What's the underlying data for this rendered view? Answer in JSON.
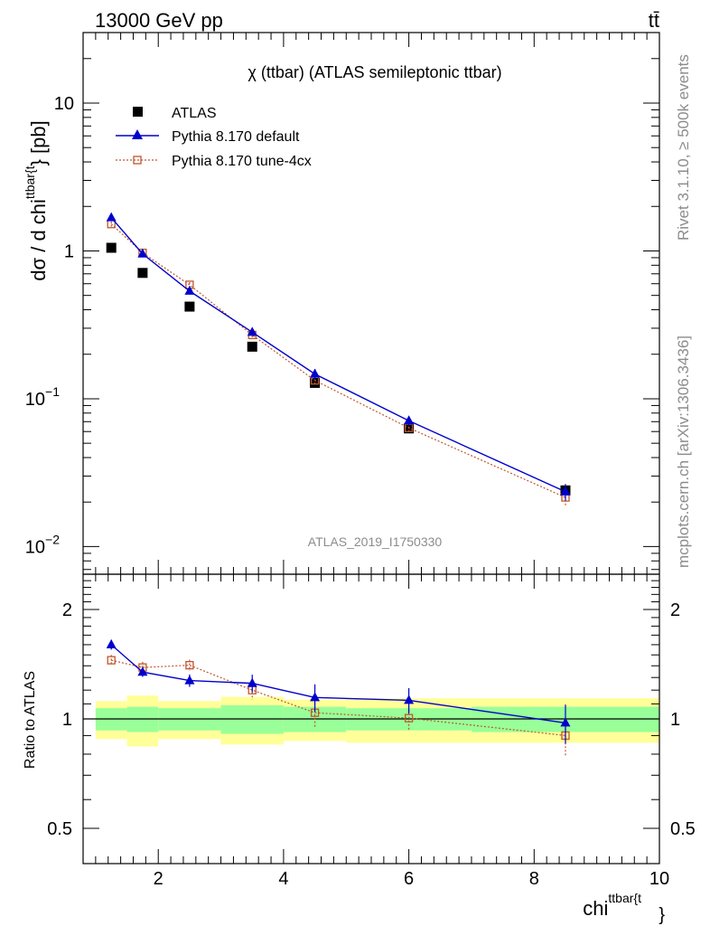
{
  "header": {
    "energy_label": "13000 GeV pp",
    "process_label": "tt̄"
  },
  "main_plot": {
    "title": "χ (ttbar) (ATLAS semileptonic ttbar)",
    "ylabel_main": "dσ / d chi",
    "ylabel_sup": "ttbar{t",
    "ylabel_unit": "} [pb]",
    "watermark": "ATLAS_2019_I1750330",
    "y_ticks": [
      {
        "mant": "10",
        "exp": "−2",
        "value": 0.01
      },
      {
        "mant": "10",
        "exp": "−1",
        "value": 0.1
      },
      {
        "mant": "1",
        "exp": "",
        "value": 1
      },
      {
        "mant": "10",
        "exp": "",
        "value": 10
      }
    ]
  },
  "side_labels": {
    "rivet": "Rivet 3.1.10, ≥ 500k events",
    "mcplots": "mcplots.cern.ch [arXiv:1306.3436]"
  },
  "ratio_plot": {
    "ylabel": "Ratio to ATLAS",
    "y_ticks": [
      "0.5",
      "1",
      "2"
    ]
  },
  "x_axis": {
    "label_main": "chi",
    "label_sup": "ttbar{t",
    "label_close": "}",
    "ticks": [
      "2",
      "4",
      "6",
      "8",
      "10"
    ]
  },
  "legend": {
    "entries": [
      "ATLAS",
      "Pythia 8.170 default",
      "Pythia 8.170 tune-4cx"
    ]
  },
  "colors": {
    "data": "#000000",
    "default": "#0000cc",
    "tune": "#c0562b",
    "band_inner": "#99ff99",
    "band_outer": "#ffff99"
  },
  "chart_data": {
    "type": "scatter",
    "x_scale": "linear",
    "xlim": [
      0.8,
      10
    ],
    "y_scale": "log",
    "ylim": [
      0.0065,
      30
    ],
    "bins": [
      [
        1,
        1.5
      ],
      [
        1.5,
        2
      ],
      [
        2,
        3
      ],
      [
        3,
        4
      ],
      [
        4,
        5
      ],
      [
        5,
        7
      ],
      [
        7,
        10
      ]
    ],
    "x": [
      1.25,
      1.75,
      2.5,
      3.5,
      4.5,
      6.0,
      8.5
    ],
    "series": [
      {
        "name": "ATLAS",
        "values": [
          1.05,
          0.71,
          0.42,
          0.225,
          0.128,
          0.063,
          0.024
        ],
        "yerr_rel_inner": [
          0.07,
          0.08,
          0.07,
          0.09,
          0.08,
          0.07,
          0.08
        ],
        "yerr_rel_outer": [
          0.12,
          0.16,
          0.12,
          0.15,
          0.13,
          0.14,
          0.14
        ]
      },
      {
        "name": "Pythia 8.170 default",
        "values": [
          1.68,
          0.955,
          0.535,
          0.282,
          0.147,
          0.071,
          0.0235
        ],
        "yerr": [
          0.07,
          0.04,
          0.025,
          0.014,
          0.012,
          0.005,
          0.003
        ]
      },
      {
        "name": "Pythia 8.170 tune-4cx",
        "values": [
          1.52,
          0.97,
          0.59,
          0.27,
          0.133,
          0.0635,
          0.0215
        ],
        "yerr": [
          0.06,
          0.04,
          0.025,
          0.013,
          0.011,
          0.005,
          0.003
        ]
      }
    ],
    "ratio": {
      "y_scale": "log",
      "ylim": [
        0.4,
        2.5
      ],
      "reference": 1.0,
      "series": [
        {
          "name": "Pythia 8.170 default",
          "values": [
            1.6,
            1.345,
            1.275,
            1.253,
            1.145,
            1.125,
            0.975
          ],
          "yerr": [
            0.05,
            0.04,
            0.05,
            0.07,
            0.1,
            0.09,
            0.12
          ]
        },
        {
          "name": "Pythia 8.170 tune-4cx",
          "values": [
            1.45,
            1.385,
            1.405,
            1.2,
            1.04,
            1.005,
            0.9
          ],
          "yerr": [
            0.05,
            0.05,
            0.05,
            0.07,
            0.09,
            0.08,
            0.11
          ]
        }
      ]
    }
  }
}
